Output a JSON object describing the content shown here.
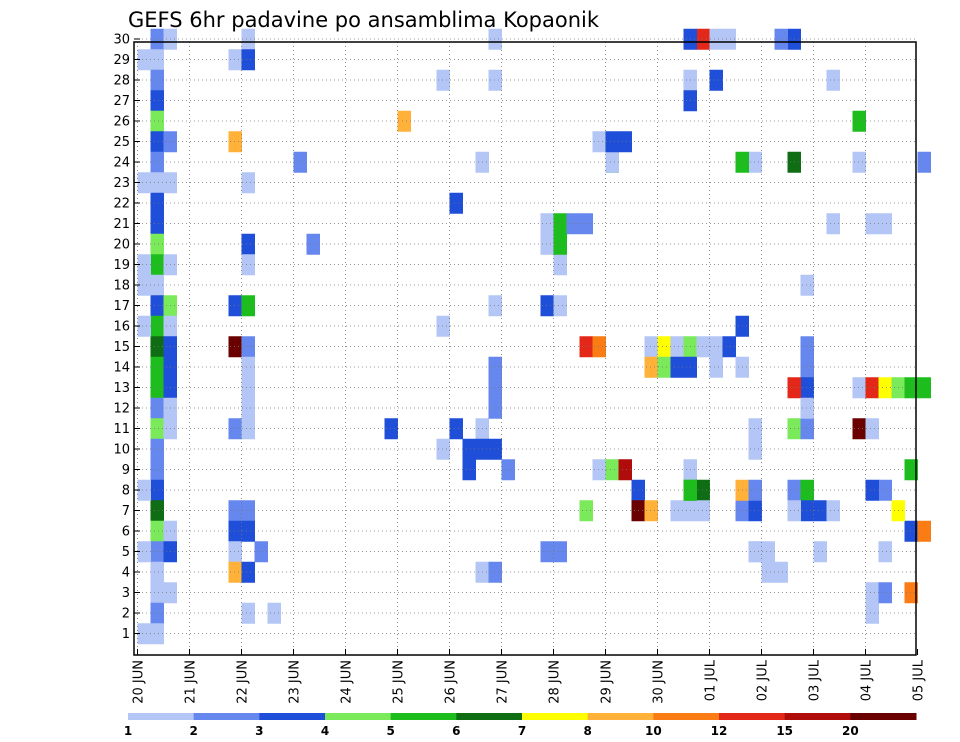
{
  "chart_data": {
    "type": "heatmap",
    "title": "GEFS 6hr padavine po ansamblima Kopaonik",
    "xlabel": "",
    "ylabel": "",
    "x_ticks": [
      "20 JUN",
      "21 JUN",
      "22 JUN",
      "23 JUN",
      "24 JUN",
      "25 JUN",
      "26 JUN",
      "27 JUN",
      "28 JUN",
      "29 JUN",
      "30 JUN",
      "01 JUL",
      "02 JUL",
      "03 JUL",
      "04 JUL",
      "05 JUL"
    ],
    "y_range": [
      1,
      30
    ],
    "x_steps_per_day": 4,
    "grid": true,
    "colorbar": {
      "labels": [
        "1",
        "2",
        "3",
        "4",
        "5",
        "6",
        "7",
        "8",
        "10",
        "12",
        "15",
        "20"
      ],
      "colors": [
        "#b3c6f5",
        "#6688ee",
        "#1f4fd9",
        "#7aea5a",
        "#1cbd1c",
        "#0f6e14",
        "#ffff00",
        "#ffb13a",
        "#fb7c14",
        "#e3281a",
        "#b00c0c",
        "#6b0000"
      ]
    },
    "cells": [
      [
        1,
        30,
        1
      ],
      [
        1,
        29,
        0
      ],
      [
        1,
        28,
        1
      ],
      [
        1,
        27,
        2
      ],
      [
        1,
        26,
        3
      ],
      [
        1,
        25,
        2
      ],
      [
        1,
        24,
        1
      ],
      [
        1,
        23,
        0
      ],
      [
        1,
        22,
        2
      ],
      [
        1,
        21,
        2
      ],
      [
        1,
        20,
        3
      ],
      [
        1,
        19,
        4
      ],
      [
        1,
        18,
        0
      ],
      [
        1,
        17,
        2
      ],
      [
        1,
        16,
        4
      ],
      [
        1,
        15,
        5
      ],
      [
        1,
        14,
        4
      ],
      [
        1,
        13,
        4
      ],
      [
        1,
        12,
        1
      ],
      [
        1,
        11,
        3
      ],
      [
        1,
        10,
        1
      ],
      [
        1,
        9,
        1
      ],
      [
        1,
        8,
        2
      ],
      [
        1,
        7,
        5
      ],
      [
        1,
        6,
        3
      ],
      [
        1,
        5,
        1
      ],
      [
        1,
        4,
        0
      ],
      [
        1,
        3,
        0
      ],
      [
        1,
        2,
        1
      ],
      [
        1,
        1,
        0
      ],
      [
        0,
        29,
        0
      ],
      [
        0,
        23,
        0
      ],
      [
        0,
        19,
        0
      ],
      [
        0,
        18,
        0
      ],
      [
        0,
        16,
        0
      ],
      [
        0,
        8,
        0
      ],
      [
        0,
        5,
        0
      ],
      [
        0,
        1,
        0
      ],
      [
        2,
        30,
        0
      ],
      [
        2,
        25,
        1
      ],
      [
        2,
        23,
        0
      ],
      [
        2,
        19,
        0
      ],
      [
        2,
        17,
        3
      ],
      [
        2,
        16,
        0
      ],
      [
        2,
        15,
        2
      ],
      [
        2,
        14,
        2
      ],
      [
        2,
        13,
        2
      ],
      [
        2,
        12,
        0
      ],
      [
        2,
        11,
        0
      ],
      [
        2,
        6,
        0
      ],
      [
        2,
        5,
        2
      ],
      [
        2,
        3,
        0
      ],
      [
        7,
        29,
        0
      ],
      [
        7,
        25,
        7
      ],
      [
        7,
        17,
        2
      ],
      [
        7,
        15,
        11
      ],
      [
        7,
        11,
        1
      ],
      [
        7,
        7,
        1
      ],
      [
        7,
        6,
        2
      ],
      [
        7,
        5,
        0
      ],
      [
        7,
        4,
        7
      ],
      [
        8,
        30,
        0
      ],
      [
        8,
        29,
        2
      ],
      [
        8,
        23,
        0
      ],
      [
        8,
        20,
        2
      ],
      [
        8,
        19,
        0
      ],
      [
        8,
        17,
        4
      ],
      [
        8,
        15,
        1
      ],
      [
        8,
        14,
        0
      ],
      [
        8,
        13,
        0
      ],
      [
        8,
        12,
        0
      ],
      [
        8,
        11,
        0
      ],
      [
        8,
        7,
        1
      ],
      [
        8,
        6,
        2
      ],
      [
        8,
        4,
        2
      ],
      [
        8,
        2,
        0
      ],
      [
        9,
        5,
        1
      ],
      [
        10,
        2,
        0
      ],
      [
        12,
        24,
        1
      ],
      [
        13,
        20,
        1
      ],
      [
        19,
        11,
        2
      ],
      [
        20,
        26,
        7
      ],
      [
        24,
        11,
        2
      ],
      [
        24,
        22,
        2
      ],
      [
        25,
        9,
        2
      ],
      [
        25,
        10,
        2
      ],
      [
        23,
        10,
        0
      ],
      [
        23,
        28,
        0
      ],
      [
        23,
        16,
        0
      ],
      [
        26,
        24,
        0
      ],
      [
        26,
        4,
        0
      ],
      [
        26,
        11,
        0
      ],
      [
        26,
        10,
        2
      ],
      [
        27,
        10,
        2
      ],
      [
        27,
        13,
        1
      ],
      [
        27,
        12,
        1
      ],
      [
        27,
        4,
        1
      ],
      [
        27,
        30,
        0
      ],
      [
        27,
        17,
        0
      ],
      [
        27,
        28,
        0
      ],
      [
        28,
        9,
        1
      ],
      [
        27,
        14,
        1
      ],
      [
        31,
        17,
        2
      ],
      [
        31,
        5,
        1
      ],
      [
        32,
        5,
        1
      ],
      [
        32,
        17,
        0
      ],
      [
        32,
        20,
        3
      ],
      [
        31,
        21,
        0
      ],
      [
        32,
        21,
        4
      ],
      [
        32,
        19,
        0
      ],
      [
        33,
        21,
        1
      ],
      [
        34,
        21,
        1
      ],
      [
        31,
        20,
        0
      ],
      [
        32,
        20,
        4
      ],
      [
        34,
        15,
        9
      ],
      [
        35,
        15,
        8
      ],
      [
        34,
        7,
        3
      ],
      [
        35,
        9,
        0
      ],
      [
        35,
        25,
        0
      ],
      [
        36,
        24,
        4
      ],
      [
        36,
        9,
        3
      ],
      [
        36,
        24,
        0
      ],
      [
        37,
        25,
        2
      ],
      [
        36,
        25,
        2
      ],
      [
        37,
        9,
        10
      ],
      [
        38,
        8,
        2
      ],
      [
        38,
        7,
        11
      ],
      [
        39,
        7,
        7
      ],
      [
        39,
        15,
        0
      ],
      [
        40,
        15,
        6
      ],
      [
        39,
        14,
        7
      ],
      [
        40,
        14,
        3
      ],
      [
        41,
        15,
        0
      ],
      [
        41,
        14,
        2
      ],
      [
        42,
        15,
        3
      ],
      [
        42,
        14,
        2
      ],
      [
        42,
        28,
        0
      ],
      [
        42,
        7,
        0
      ],
      [
        41,
        7,
        0
      ],
      [
        42,
        9,
        0
      ],
      [
        43,
        8,
        5
      ],
      [
        42,
        8,
        4
      ],
      [
        43,
        7,
        0
      ],
      [
        43,
        30,
        9
      ],
      [
        42,
        30,
        2
      ],
      [
        42,
        27,
        2
      ],
      [
        42,
        8,
        4
      ],
      [
        43,
        15,
        0
      ],
      [
        44,
        15,
        0
      ],
      [
        44,
        28,
        2
      ],
      [
        44,
        14,
        0
      ],
      [
        44,
        30,
        0
      ],
      [
        45,
        30,
        0
      ],
      [
        45,
        15,
        2
      ],
      [
        46,
        16,
        2
      ],
      [
        46,
        14,
        0
      ],
      [
        46,
        7,
        1
      ],
      [
        46,
        8,
        7
      ],
      [
        47,
        7,
        2
      ],
      [
        47,
        8,
        1
      ],
      [
        47,
        5,
        0
      ],
      [
        47,
        11,
        0
      ],
      [
        47,
        10,
        0
      ],
      [
        47,
        24,
        0
      ],
      [
        46,
        24,
        4
      ],
      [
        47,
        5,
        0
      ],
      [
        48,
        5,
        0
      ],
      [
        48,
        4,
        0
      ],
      [
        49,
        4,
        0
      ],
      [
        50,
        30,
        2
      ],
      [
        50,
        8,
        1
      ],
      [
        51,
        8,
        4
      ],
      [
        51,
        7,
        2
      ],
      [
        51,
        14,
        1
      ],
      [
        50,
        7,
        0
      ],
      [
        49,
        30,
        1
      ],
      [
        50,
        24,
        5
      ],
      [
        51,
        13,
        2
      ],
      [
        50,
        13,
        9
      ],
      [
        50,
        11,
        3
      ],
      [
        51,
        11,
        1
      ],
      [
        51,
        12,
        0
      ],
      [
        51,
        15,
        1
      ],
      [
        52,
        7,
        2
      ],
      [
        52,
        5,
        0
      ],
      [
        53,
        7,
        0
      ],
      [
        51,
        18,
        0
      ],
      [
        53,
        21,
        0
      ],
      [
        53,
        28,
        0
      ],
      [
        55,
        26,
        4
      ],
      [
        55,
        11,
        11
      ],
      [
        56,
        11,
        0
      ],
      [
        55,
        24,
        0
      ],
      [
        56,
        21,
        0
      ],
      [
        57,
        21,
        0
      ],
      [
        55,
        13,
        0
      ],
      [
        56,
        13,
        9
      ],
      [
        57,
        13,
        6
      ],
      [
        58,
        13,
        3
      ],
      [
        59,
        13,
        4
      ],
      [
        57,
        8,
        1
      ],
      [
        56,
        8,
        2
      ],
      [
        56,
        3,
        0
      ],
      [
        56,
        2,
        0
      ],
      [
        57,
        5,
        0
      ],
      [
        57,
        3,
        1
      ],
      [
        59,
        6,
        2
      ],
      [
        59,
        9,
        4
      ],
      [
        60,
        6,
        8
      ],
      [
        58,
        7,
        6
      ],
      [
        59,
        3,
        8
      ],
      [
        60,
        24,
        1
      ],
      [
        60,
        13,
        4
      ]
    ]
  }
}
